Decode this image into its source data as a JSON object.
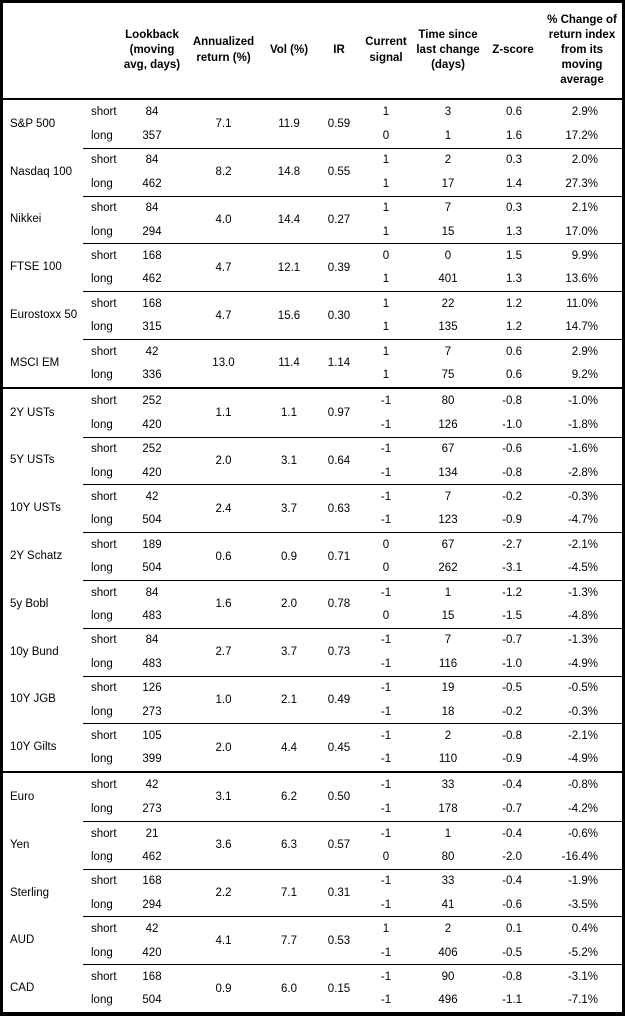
{
  "columns": {
    "asset": "",
    "horizon": "",
    "lookback": "Lookback (moving avg, days)",
    "annualized": "Annualized return (%)",
    "vol": "Vol (%)",
    "ir": "IR",
    "signal": "Current signal",
    "time": "Time since last change (days)",
    "zscore": "Z-score",
    "pct_change": "% Change of return index from its moving average"
  },
  "colors": {
    "text": "#000000",
    "background": "#ffffff",
    "border": "#000000"
  },
  "sections": [
    [
      {
        "name": "S&P 500",
        "annualized": "7.1",
        "vol": "11.9",
        "ir": "0.59",
        "rows": [
          {
            "horizon": "short",
            "lookback": "84",
            "signal": "1",
            "time": "3",
            "zscore": "0.6",
            "pct": "2.9%"
          },
          {
            "horizon": "long",
            "lookback": "357",
            "signal": "0",
            "time": "1",
            "zscore": "1.6",
            "pct": "17.2%"
          }
        ]
      },
      {
        "name": "Nasdaq 100",
        "annualized": "8.2",
        "vol": "14.8",
        "ir": "0.55",
        "rows": [
          {
            "horizon": "short",
            "lookback": "84",
            "signal": "1",
            "time": "2",
            "zscore": "0.3",
            "pct": "2.0%"
          },
          {
            "horizon": "long",
            "lookback": "462",
            "signal": "1",
            "time": "17",
            "zscore": "1.4",
            "pct": "27.3%"
          }
        ]
      },
      {
        "name": "Nikkei",
        "annualized": "4.0",
        "vol": "14.4",
        "ir": "0.27",
        "rows": [
          {
            "horizon": "short",
            "lookback": "84",
            "signal": "1",
            "time": "7",
            "zscore": "0.3",
            "pct": "2.1%"
          },
          {
            "horizon": "long",
            "lookback": "294",
            "signal": "1",
            "time": "15",
            "zscore": "1.3",
            "pct": "17.0%"
          }
        ]
      },
      {
        "name": "FTSE 100",
        "annualized": "4.7",
        "vol": "12.1",
        "ir": "0.39",
        "rows": [
          {
            "horizon": "short",
            "lookback": "168",
            "signal": "0",
            "time": "0",
            "zscore": "1.5",
            "pct": "9.9%"
          },
          {
            "horizon": "long",
            "lookback": "462",
            "signal": "1",
            "time": "401",
            "zscore": "1.3",
            "pct": "13.6%"
          }
        ]
      },
      {
        "name": "Eurostoxx 50",
        "annualized": "4.7",
        "vol": "15.6",
        "ir": "0.30",
        "rows": [
          {
            "horizon": "short",
            "lookback": "168",
            "signal": "1",
            "time": "22",
            "zscore": "1.2",
            "pct": "11.0%"
          },
          {
            "horizon": "long",
            "lookback": "315",
            "signal": "1",
            "time": "135",
            "zscore": "1.2",
            "pct": "14.7%"
          }
        ]
      },
      {
        "name": "MSCI EM",
        "annualized": "13.0",
        "vol": "11.4",
        "ir": "1.14",
        "rows": [
          {
            "horizon": "short",
            "lookback": "42",
            "signal": "1",
            "time": "7",
            "zscore": "0.6",
            "pct": "2.9%"
          },
          {
            "horizon": "long",
            "lookback": "336",
            "signal": "1",
            "time": "75",
            "zscore": "0.6",
            "pct": "9.2%"
          }
        ]
      }
    ],
    [
      {
        "name": "2Y USTs",
        "annualized": "1.1",
        "vol": "1.1",
        "ir": "0.97",
        "rows": [
          {
            "horizon": "short",
            "lookback": "252",
            "signal": "-1",
            "time": "80",
            "zscore": "-0.8",
            "pct": "-1.0%"
          },
          {
            "horizon": "long",
            "lookback": "420",
            "signal": "-1",
            "time": "126",
            "zscore": "-1.0",
            "pct": "-1.8%"
          }
        ]
      },
      {
        "name": "5Y USTs",
        "annualized": "2.0",
        "vol": "3.1",
        "ir": "0.64",
        "rows": [
          {
            "horizon": "short",
            "lookback": "252",
            "signal": "-1",
            "time": "67",
            "zscore": "-0.6",
            "pct": "-1.6%"
          },
          {
            "horizon": "long",
            "lookback": "420",
            "signal": "-1",
            "time": "134",
            "zscore": "-0.8",
            "pct": "-2.8%"
          }
        ]
      },
      {
        "name": "10Y USTs",
        "annualized": "2.4",
        "vol": "3.7",
        "ir": "0.63",
        "rows": [
          {
            "horizon": "short",
            "lookback": "42",
            "signal": "-1",
            "time": "7",
            "zscore": "-0.2",
            "pct": "-0.3%"
          },
          {
            "horizon": "long",
            "lookback": "504",
            "signal": "-1",
            "time": "123",
            "zscore": "-0.9",
            "pct": "-4.7%"
          }
        ]
      },
      {
        "name": "2Y Schatz",
        "annualized": "0.6",
        "vol": "0.9",
        "ir": "0.71",
        "rows": [
          {
            "horizon": "short",
            "lookback": "189",
            "signal": "0",
            "time": "67",
            "zscore": "-2.7",
            "pct": "-2.1%"
          },
          {
            "horizon": "long",
            "lookback": "504",
            "signal": "0",
            "time": "262",
            "zscore": "-3.1",
            "pct": "-4.5%"
          }
        ]
      },
      {
        "name": "5y Bobl",
        "annualized": "1.6",
        "vol": "2.0",
        "ir": "0.78",
        "rows": [
          {
            "horizon": "short",
            "lookback": "84",
            "signal": "-1",
            "time": "1",
            "zscore": "-1.2",
            "pct": "-1.3%"
          },
          {
            "horizon": "long",
            "lookback": "483",
            "signal": "0",
            "time": "15",
            "zscore": "-1.5",
            "pct": "-4.8%"
          }
        ]
      },
      {
        "name": "10y Bund",
        "annualized": "2.7",
        "vol": "3.7",
        "ir": "0.73",
        "rows": [
          {
            "horizon": "short",
            "lookback": "84",
            "signal": "-1",
            "time": "7",
            "zscore": "-0.7",
            "pct": "-1.3%"
          },
          {
            "horizon": "long",
            "lookback": "483",
            "signal": "-1",
            "time": "116",
            "zscore": "-1.0",
            "pct": "-4.9%"
          }
        ]
      },
      {
        "name": "10Y JGB",
        "annualized": "1.0",
        "vol": "2.1",
        "ir": "0.49",
        "rows": [
          {
            "horizon": "short",
            "lookback": "126",
            "signal": "-1",
            "time": "19",
            "zscore": "-0.5",
            "pct": "-0.5%"
          },
          {
            "horizon": "long",
            "lookback": "273",
            "signal": "-1",
            "time": "18",
            "zscore": "-0.2",
            "pct": "-0.3%"
          }
        ]
      },
      {
        "name": "10Y Gilts",
        "annualized": "2.0",
        "vol": "4.4",
        "ir": "0.45",
        "rows": [
          {
            "horizon": "short",
            "lookback": "105",
            "signal": "-1",
            "time": "2",
            "zscore": "-0.8",
            "pct": "-2.1%"
          },
          {
            "horizon": "long",
            "lookback": "399",
            "signal": "-1",
            "time": "110",
            "zscore": "-0.9",
            "pct": "-4.9%"
          }
        ]
      }
    ],
    [
      {
        "name": "Euro",
        "annualized": "3.1",
        "vol": "6.2",
        "ir": "0.50",
        "rows": [
          {
            "horizon": "short",
            "lookback": "42",
            "signal": "-1",
            "time": "33",
            "zscore": "-0.4",
            "pct": "-0.8%"
          },
          {
            "horizon": "long",
            "lookback": "273",
            "signal": "-1",
            "time": "178",
            "zscore": "-0.7",
            "pct": "-4.2%"
          }
        ]
      },
      {
        "name": "Yen",
        "annualized": "3.6",
        "vol": "6.3",
        "ir": "0.57",
        "rows": [
          {
            "horizon": "short",
            "lookback": "21",
            "signal": "-1",
            "time": "1",
            "zscore": "-0.4",
            "pct": "-0.6%"
          },
          {
            "horizon": "long",
            "lookback": "462",
            "signal": "0",
            "time": "80",
            "zscore": "-2.0",
            "pct": "-16.4%"
          }
        ]
      },
      {
        "name": "Sterling",
        "annualized": "2.2",
        "vol": "7.1",
        "ir": "0.31",
        "rows": [
          {
            "horizon": "short",
            "lookback": "168",
            "signal": "-1",
            "time": "33",
            "zscore": "-0.4",
            "pct": "-1.9%"
          },
          {
            "horizon": "long",
            "lookback": "294",
            "signal": "-1",
            "time": "41",
            "zscore": "-0.6",
            "pct": "-3.5%"
          }
        ]
      },
      {
        "name": "AUD",
        "annualized": "4.1",
        "vol": "7.7",
        "ir": "0.53",
        "rows": [
          {
            "horizon": "short",
            "lookback": "42",
            "signal": "1",
            "time": "2",
            "zscore": "0.1",
            "pct": "0.4%"
          },
          {
            "horizon": "long",
            "lookback": "420",
            "signal": "-1",
            "time": "406",
            "zscore": "-0.5",
            "pct": "-5.2%"
          }
        ]
      },
      {
        "name": "CAD",
        "annualized": "0.9",
        "vol": "6.0",
        "ir": "0.15",
        "rows": [
          {
            "horizon": "short",
            "lookback": "168",
            "signal": "-1",
            "time": "90",
            "zscore": "-0.8",
            "pct": "-3.1%"
          },
          {
            "horizon": "long",
            "lookback": "504",
            "signal": "-1",
            "time": "496",
            "zscore": "-1.1",
            "pct": "-7.1%"
          }
        ]
      }
    ]
  ]
}
